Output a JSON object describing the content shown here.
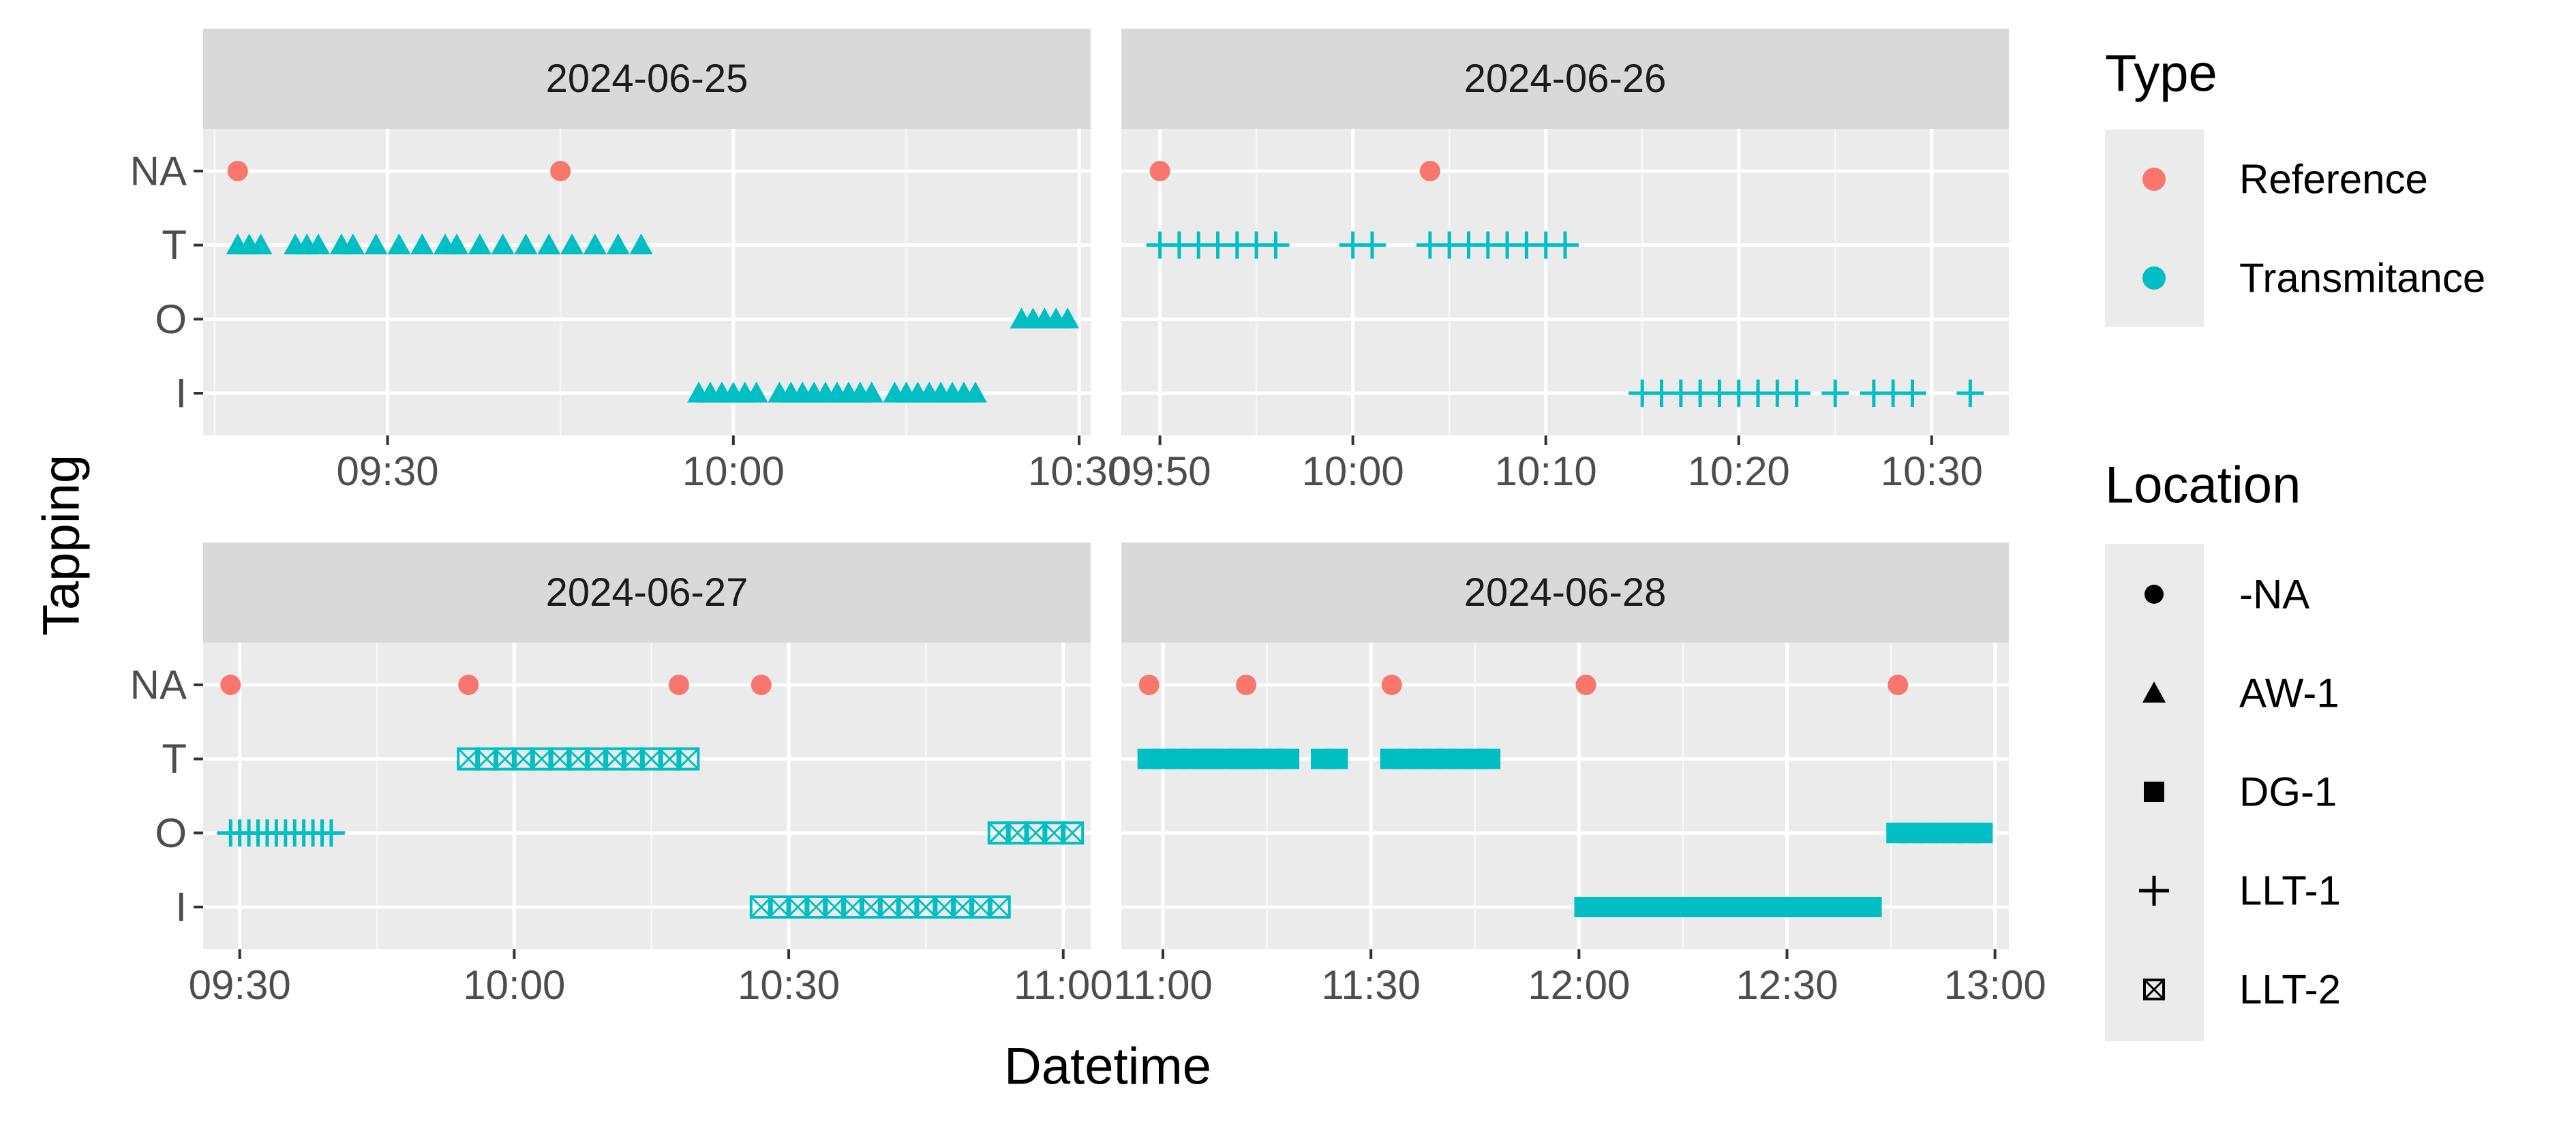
{
  "chart_data": {
    "type": "scatter",
    "xlabel": "Datetime",
    "ylabel": "Tapping",
    "y_categories": [
      "I",
      "O",
      "T",
      "NA"
    ],
    "colors": {
      "Reference": "#F8766D",
      "Transmitance": "#00BFC4"
    },
    "legend": {
      "position": "right",
      "type": {
        "title": "Type",
        "entries": [
          "Reference",
          "Transmitance"
        ]
      },
      "location": {
        "title": "Location",
        "entries": [
          "-NA",
          "AW-1",
          "DG-1",
          "LLT-1",
          "LLT-2"
        ]
      }
    },
    "panels": [
      {
        "title": "2024-06-25",
        "xlim": [
          "09:14",
          "10:31"
        ],
        "xticks": [
          "09:30",
          "10:00",
          "10:30"
        ],
        "series": [
          {
            "type": "Reference",
            "location": "-NA",
            "y": "NA",
            "x": [
              "09:17",
              "09:45"
            ]
          },
          {
            "type": "Transmitance",
            "location": "AW-1",
            "y": "T",
            "x": [
              "09:17",
              "09:18",
              "09:19",
              "09:22",
              "09:23",
              "09:24",
              "09:26",
              "09:27",
              "09:29",
              "09:31",
              "09:33",
              "09:35",
              "09:36",
              "09:38",
              "09:40",
              "09:42",
              "09:44",
              "09:46",
              "09:48",
              "09:50",
              "09:52"
            ]
          },
          {
            "type": "Transmitance",
            "location": "AW-1",
            "y": "O",
            "x": [
              "10:25",
              "10:26",
              "10:27",
              "10:28",
              "10:29"
            ]
          },
          {
            "type": "Transmitance",
            "location": "AW-1",
            "y": "I",
            "x": [
              "09:57",
              "09:58",
              "09:59",
              "10:00",
              "10:01",
              "10:02",
              "10:04",
              "10:05",
              "10:06",
              "10:07",
              "10:08",
              "10:09",
              "10:10",
              "10:11",
              "10:12",
              "10:14",
              "10:15",
              "10:16",
              "10:17",
              "10:18",
              "10:19",
              "10:20",
              "10:21"
            ]
          }
        ]
      },
      {
        "title": "2024-06-26",
        "xlim": [
          "09:48",
          "10:34"
        ],
        "xticks": [
          "09:50",
          "10:00",
          "10:10",
          "10:20",
          "10:30"
        ],
        "series": [
          {
            "type": "Reference",
            "location": "-NA",
            "y": "NA",
            "x": [
              "09:50",
              "10:04"
            ]
          },
          {
            "type": "Transmitance",
            "location": "LLT-1",
            "y": "T",
            "x": [
              "09:50",
              "09:51",
              "09:52",
              "09:53",
              "09:54",
              "09:55",
              "09:56",
              "10:00",
              "10:01",
              "10:04",
              "10:05",
              "10:06",
              "10:07",
              "10:08",
              "10:09",
              "10:10",
              "10:11"
            ]
          },
          {
            "type": "Transmitance",
            "location": "LLT-1",
            "y": "I",
            "x": [
              "10:15",
              "10:16",
              "10:17",
              "10:18",
              "10:19",
              "10:20",
              "10:21",
              "10:22",
              "10:23",
              "10:25",
              "10:27",
              "10:28",
              "10:29",
              "10:32"
            ]
          }
        ]
      },
      {
        "title": "2024-06-27",
        "xlim": [
          "09:26",
          "11:03"
        ],
        "xticks": [
          "09:30",
          "10:00",
          "10:30",
          "11:00"
        ],
        "series": [
          {
            "type": "Reference",
            "location": "-NA",
            "y": "NA",
            "x": [
              "09:29",
              "09:55",
              "10:18",
              "10:27"
            ]
          },
          {
            "type": "Transmitance",
            "location": "LLT-1",
            "y": "O",
            "x": [
              "09:29",
              "09:30",
              "09:31",
              "09:32",
              "09:33",
              "09:34",
              "09:35",
              "09:36",
              "09:37",
              "09:38",
              "09:39",
              "09:40"
            ]
          },
          {
            "type": "Transmitance",
            "location": "LLT-2",
            "y": "T",
            "x": [
              "09:55",
              "09:57",
              "09:59",
              "10:01",
              "10:03",
              "10:05",
              "10:07",
              "10:09",
              "10:11",
              "10:13",
              "10:15",
              "10:17",
              "10:19"
            ]
          },
          {
            "type": "Transmitance",
            "location": "LLT-2",
            "y": "I",
            "x": [
              "10:27",
              "10:29",
              "10:31",
              "10:33",
              "10:35",
              "10:37",
              "10:39",
              "10:41",
              "10:43",
              "10:45",
              "10:47",
              "10:49",
              "10:51",
              "10:53"
            ]
          },
          {
            "type": "Transmitance",
            "location": "LLT-2",
            "y": "O",
            "x": [
              "10:53",
              "10:55",
              "10:57",
              "10:59",
              "11:01"
            ]
          }
        ]
      },
      {
        "title": "2024-06-28",
        "xlim": [
          "10:54",
          "13:02"
        ],
        "xticks": [
          "11:00",
          "11:30",
          "12:00",
          "12:30",
          "13:00"
        ],
        "series": [
          {
            "type": "Reference",
            "location": "-NA",
            "y": "NA",
            "x": [
              "10:58",
              "11:12",
              "11:33",
              "12:01",
              "12:46"
            ]
          },
          {
            "type": "Transmitance",
            "location": "DG-1",
            "y": "T",
            "x": [
              "10:58",
              "11:00",
              "11:02",
              "11:04",
              "11:06",
              "11:07",
              "11:09",
              "11:11",
              "11:12",
              "11:14",
              "11:16",
              "11:18",
              "11:23",
              "11:25",
              "11:33",
              "11:35",
              "11:37",
              "11:39",
              "11:41",
              "11:43",
              "11:45",
              "11:47"
            ]
          },
          {
            "type": "Transmitance",
            "location": "DG-1",
            "y": "I",
            "x": [
              "12:01",
              "12:03",
              "12:05",
              "12:07",
              "12:09",
              "12:11",
              "12:14",
              "12:16",
              "12:18",
              "12:20",
              "12:22",
              "12:24",
              "12:26",
              "12:28",
              "12:30",
              "12:32",
              "12:34",
              "12:36",
              "12:38",
              "12:40",
              "12:42"
            ]
          },
          {
            "type": "Transmitance",
            "location": "DG-1",
            "y": "O",
            "x": [
              "12:46",
              "12:48",
              "12:50",
              "12:52",
              "12:54",
              "12:56",
              "12:58"
            ]
          }
        ]
      }
    ]
  }
}
